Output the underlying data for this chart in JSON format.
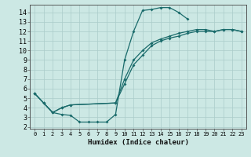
{
  "xlabel": "Humidex (Indice chaleur)",
  "bg_color": "#cce8e4",
  "grid_color": "#aaccca",
  "line_color": "#1a6b6b",
  "xlim": [
    -0.5,
    23.5
  ],
  "ylim": [
    1.8,
    14.8
  ],
  "xticks": [
    0,
    1,
    2,
    3,
    4,
    5,
    6,
    7,
    8,
    9,
    10,
    11,
    12,
    13,
    14,
    15,
    16,
    17,
    18,
    19,
    20,
    21,
    22,
    23
  ],
  "yticks": [
    2,
    3,
    4,
    5,
    6,
    7,
    8,
    9,
    10,
    11,
    12,
    13,
    14
  ],
  "line1_x": [
    0,
    1,
    2,
    3,
    4,
    5,
    6,
    7,
    8,
    9,
    10,
    11,
    12,
    13,
    14,
    15,
    16,
    17
  ],
  "line1_y": [
    5.5,
    4.5,
    3.5,
    3.3,
    3.2,
    2.5,
    2.5,
    2.5,
    2.5,
    3.3,
    9.0,
    12.0,
    14.2,
    14.3,
    14.5,
    14.5,
    14.0,
    13.3
  ],
  "line2_x": [
    0,
    1,
    2,
    3,
    4,
    9,
    10,
    11,
    12,
    13,
    14,
    15,
    16,
    17,
    18,
    19,
    20,
    21,
    22,
    23
  ],
  "line2_y": [
    5.5,
    4.5,
    3.5,
    4.0,
    4.3,
    4.5,
    6.5,
    8.5,
    9.5,
    10.5,
    11.0,
    11.3,
    11.5,
    11.8,
    12.0,
    12.0,
    12.0,
    12.2,
    12.2,
    12.0
  ],
  "line3_x": [
    0,
    1,
    2,
    3,
    4,
    9,
    10,
    11,
    12,
    13,
    14,
    15,
    16,
    17,
    18,
    19,
    20,
    21,
    22,
    23
  ],
  "line3_y": [
    5.5,
    4.5,
    3.5,
    4.0,
    4.3,
    4.5,
    7.0,
    9.0,
    10.0,
    10.8,
    11.2,
    11.5,
    11.8,
    12.0,
    12.2,
    12.2,
    12.0,
    12.2,
    12.2,
    12.0
  ],
  "markersize": 2.0,
  "linewidth": 0.9,
  "tick_fontsize_x": 5.0,
  "tick_fontsize_y": 6.0,
  "xlabel_fontsize": 6.5
}
